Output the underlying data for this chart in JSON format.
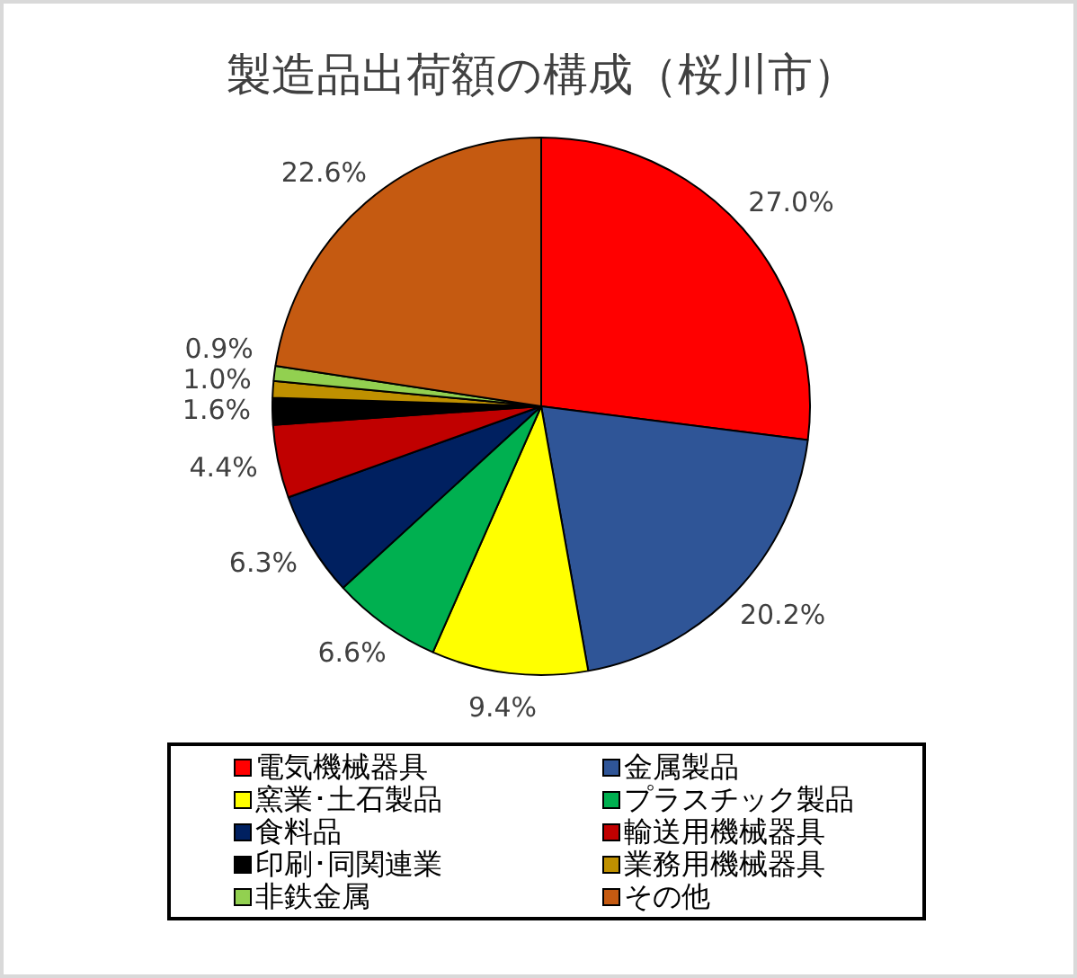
{
  "chart_data": {
    "type": "pie",
    "title": "製造品出荷額の構成（桜川市）",
    "categories": [
      "電気機械器具",
      "金属製品",
      "窯業･土石製品",
      "プラスチック製品",
      "食料品",
      "輸送用機械器具",
      "印刷･同関連業",
      "業務用機械器具",
      "非鉄金属",
      "その他"
    ],
    "values": [
      27.0,
      20.2,
      9.4,
      6.6,
      6.3,
      4.4,
      1.6,
      1.0,
      0.9,
      22.6
    ],
    "colors": [
      "#ff0000",
      "#2f5597",
      "#ffff00",
      "#00b050",
      "#002060",
      "#c00000",
      "#000000",
      "#bf9000",
      "#92d050",
      "#c55a11"
    ],
    "value_labels": [
      "27.0%",
      "20.2%",
      "9.4%",
      "6.6%",
      "6.3%",
      "4.4%",
      "1.6%",
      "1.0%",
      "0.9%",
      "22.6%"
    ],
    "legend": "bottom"
  }
}
